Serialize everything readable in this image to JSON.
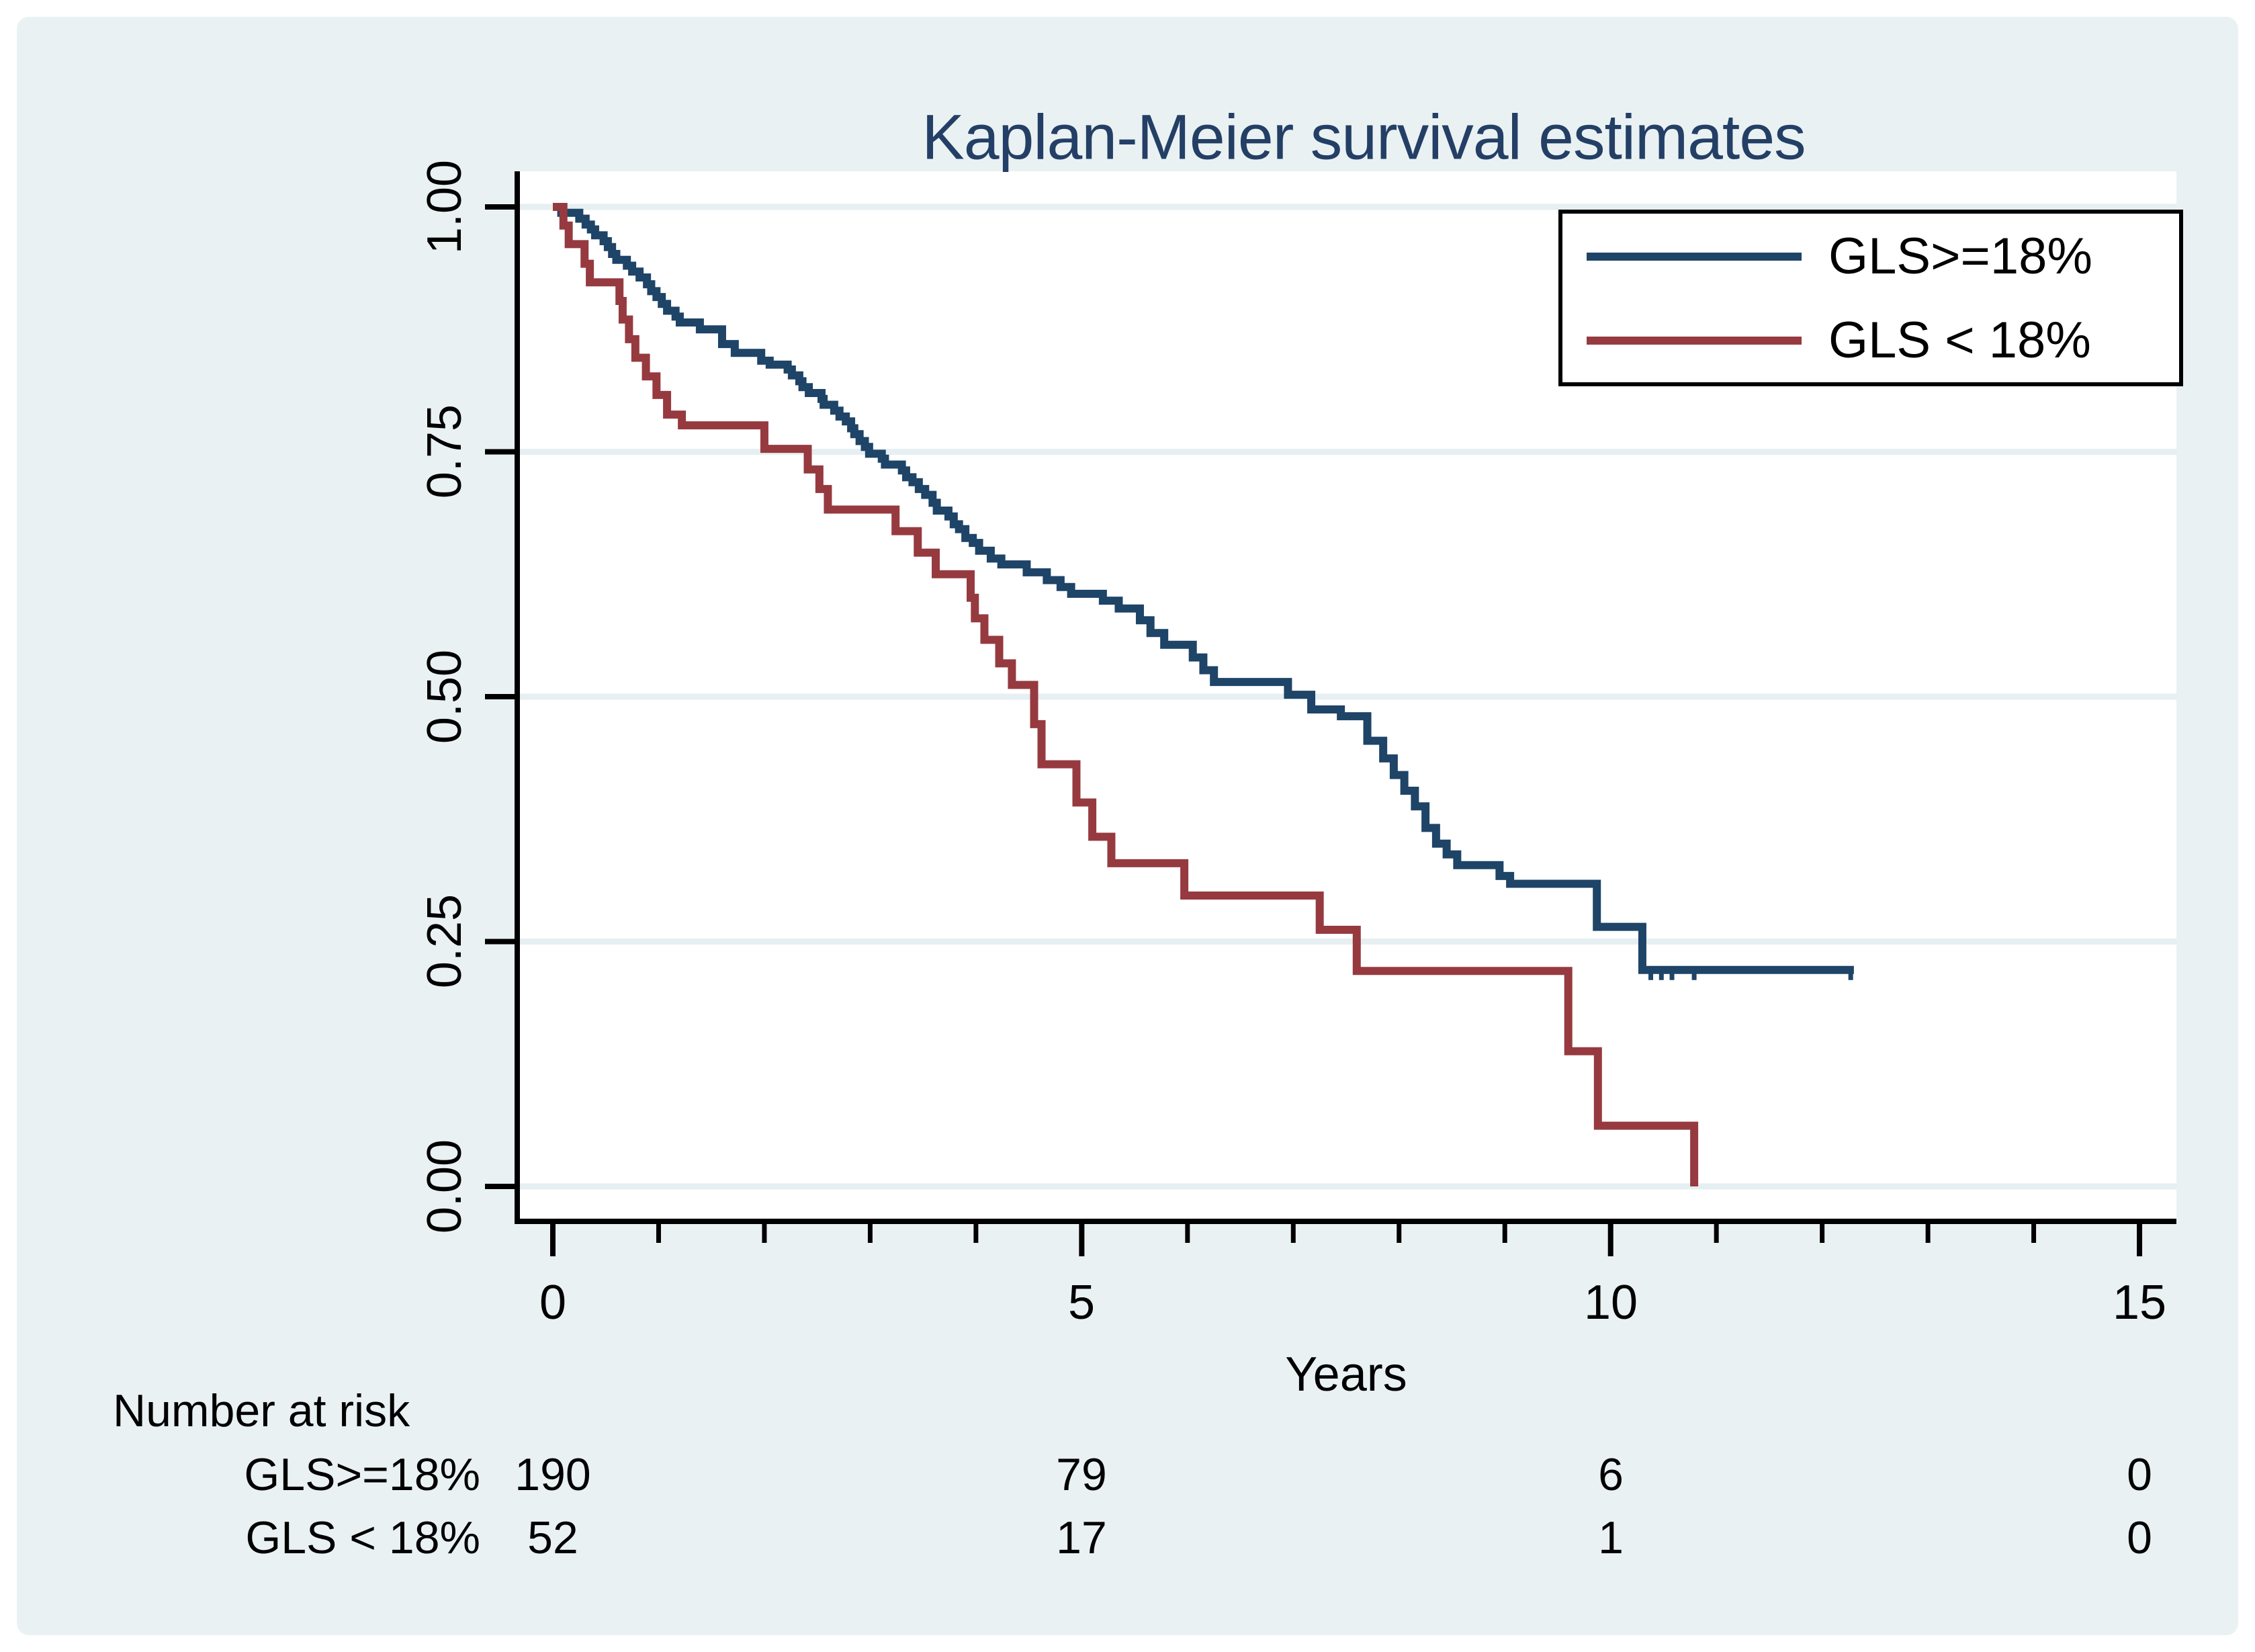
{
  "title": "Kaplan-Meier survival estimates",
  "colors": {
    "navy": "#1E4467",
    "maroon": "#963A40",
    "canvas_bg": "#EAF1F2",
    "plot_bg": "#FFFFFF",
    "gridline": "#E6EFF1",
    "axis": "#000000",
    "title_text": "#243F66"
  },
  "axes": {
    "y": {
      "ticks": [
        {
          "label": "1.00",
          "value": 1.0
        },
        {
          "label": "0.75",
          "value": 0.75
        },
        {
          "label": "0.50",
          "value": 0.5
        },
        {
          "label": "0.25",
          "value": 0.25
        },
        {
          "label": "0.00",
          "value": 0.0
        }
      ]
    },
    "x": {
      "label": "Years",
      "ticks": [
        {
          "label": "0",
          "value": 0
        },
        {
          "label": "5",
          "value": 5
        },
        {
          "label": "10",
          "value": 10
        },
        {
          "label": "15",
          "value": 15
        }
      ],
      "minor_tick_values": [
        1,
        2,
        3,
        4,
        6,
        7,
        8,
        9,
        11,
        12,
        13,
        14
      ]
    }
  },
  "legend": {
    "items": [
      {
        "label": "GLS>=18%",
        "color_key": "navy"
      },
      {
        "label": "GLS < 18%",
        "color_key": "maroon"
      }
    ]
  },
  "risk_table": {
    "heading": "Number at risk",
    "time_points": [
      0,
      5,
      10,
      15
    ],
    "rows": [
      {
        "label": "GLS>=18%",
        "counts": [
          "190",
          "79",
          "6",
          "0"
        ]
      },
      {
        "label": "GLS < 18%",
        "counts": [
          "52",
          "17",
          "1",
          "0"
        ]
      }
    ]
  },
  "chart_data": {
    "type": "line",
    "subtype": "kaplan-meier-step",
    "title": "Kaplan-Meier survival estimates",
    "xlabel": "Years",
    "ylabel": "",
    "xlim": [
      0,
      15.4
    ],
    "ylim": [
      0,
      1.0
    ],
    "x_ticks": [
      0,
      5,
      10,
      15
    ],
    "y_ticks": [
      0.0,
      0.25,
      0.5,
      0.75,
      1.0
    ],
    "grid": "horizontal",
    "legend_position": "top-right-inside",
    "series": [
      {
        "name": "GLS>=18%",
        "color_key": "navy",
        "n_at_risk": [
          190,
          79,
          6,
          0
        ],
        "end_t": 12.3,
        "censor_t": [
          10.38,
          10.48,
          10.58,
          10.79,
          12.27
        ],
        "points": [
          [
            0,
            1.0
          ],
          [
            0.08,
            0.994
          ],
          [
            0.25,
            0.988
          ],
          [
            0.31,
            0.982
          ],
          [
            0.36,
            0.977
          ],
          [
            0.4,
            0.971
          ],
          [
            0.48,
            0.965
          ],
          [
            0.52,
            0.959
          ],
          [
            0.56,
            0.952
          ],
          [
            0.6,
            0.946
          ],
          [
            0.7,
            0.94
          ],
          [
            0.75,
            0.934
          ],
          [
            0.82,
            0.928
          ],
          [
            0.89,
            0.921
          ],
          [
            0.93,
            0.914
          ],
          [
            0.98,
            0.908
          ],
          [
            1.03,
            0.901
          ],
          [
            1.08,
            0.894
          ],
          [
            1.16,
            0.888
          ],
          [
            1.2,
            0.882
          ],
          [
            1.39,
            0.875
          ],
          [
            1.6,
            0.86
          ],
          [
            1.72,
            0.851
          ],
          [
            1.97,
            0.843
          ],
          [
            2.05,
            0.839
          ],
          [
            2.22,
            0.834
          ],
          [
            2.26,
            0.828
          ],
          [
            2.33,
            0.822
          ],
          [
            2.36,
            0.816
          ],
          [
            2.42,
            0.81
          ],
          [
            2.54,
            0.804
          ],
          [
            2.56,
            0.798
          ],
          [
            2.66,
            0.792
          ],
          [
            2.71,
            0.786
          ],
          [
            2.77,
            0.781
          ],
          [
            2.82,
            0.774
          ],
          [
            2.85,
            0.768
          ],
          [
            2.9,
            0.761
          ],
          [
            2.95,
            0.755
          ],
          [
            2.99,
            0.748
          ],
          [
            3.11,
            0.743
          ],
          [
            3.14,
            0.737
          ],
          [
            3.3,
            0.731
          ],
          [
            3.34,
            0.724
          ],
          [
            3.4,
            0.719
          ],
          [
            3.46,
            0.712
          ],
          [
            3.52,
            0.706
          ],
          [
            3.59,
            0.698
          ],
          [
            3.63,
            0.69
          ],
          [
            3.74,
            0.684
          ],
          [
            3.79,
            0.676
          ],
          [
            3.84,
            0.671
          ],
          [
            3.9,
            0.662
          ],
          [
            3.97,
            0.657
          ],
          [
            4.03,
            0.649
          ],
          [
            4.14,
            0.641
          ],
          [
            4.24,
            0.635
          ],
          [
            4.48,
            0.627
          ],
          [
            4.67,
            0.619
          ],
          [
            4.8,
            0.612
          ],
          [
            4.9,
            0.605
          ],
          [
            5.2,
            0.598
          ],
          [
            5.35,
            0.59
          ],
          [
            5.55,
            0.578
          ],
          [
            5.65,
            0.565
          ],
          [
            5.78,
            0.553
          ],
          [
            6.05,
            0.54
          ],
          [
            6.15,
            0.527
          ],
          [
            6.25,
            0.515
          ],
          [
            6.95,
            0.502
          ],
          [
            7.17,
            0.487
          ],
          [
            7.45,
            0.48
          ],
          [
            7.7,
            0.455
          ],
          [
            7.85,
            0.437
          ],
          [
            7.95,
            0.42
          ],
          [
            8.05,
            0.404
          ],
          [
            8.15,
            0.388
          ],
          [
            8.25,
            0.366
          ],
          [
            8.35,
            0.35
          ],
          [
            8.45,
            0.339
          ],
          [
            8.55,
            0.328
          ],
          [
            8.95,
            0.317
          ],
          [
            9.05,
            0.309
          ],
          [
            9.87,
            0.265
          ],
          [
            10.3,
            0.221
          ]
        ]
      },
      {
        "name": "GLS < 18%",
        "color_key": "maroon",
        "n_at_risk": [
          52,
          17,
          1,
          0
        ],
        "end_t": 10.79,
        "censor_t": [],
        "points": [
          [
            0,
            1.0
          ],
          [
            0.1,
            0.981
          ],
          [
            0.15,
            0.962
          ],
          [
            0.3,
            0.942
          ],
          [
            0.35,
            0.923
          ],
          [
            0.63,
            0.904
          ],
          [
            0.66,
            0.885
          ],
          [
            0.72,
            0.865
          ],
          [
            0.78,
            0.846
          ],
          [
            0.88,
            0.827
          ],
          [
            0.98,
            0.808
          ],
          [
            1.08,
            0.788
          ],
          [
            1.22,
            0.777
          ],
          [
            2.0,
            0.753
          ],
          [
            2.41,
            0.732
          ],
          [
            2.52,
            0.712
          ],
          [
            2.6,
            0.691
          ],
          [
            3.24,
            0.669
          ],
          [
            3.45,
            0.647
          ],
          [
            3.62,
            0.625
          ],
          [
            3.95,
            0.601
          ],
          [
            3.99,
            0.58
          ],
          [
            4.08,
            0.558
          ],
          [
            4.22,
            0.534
          ],
          [
            4.34,
            0.512
          ],
          [
            4.55,
            0.472
          ],
          [
            4.62,
            0.431
          ],
          [
            4.95,
            0.392
          ],
          [
            5.1,
            0.357
          ],
          [
            5.28,
            0.33
          ],
          [
            5.97,
            0.297
          ],
          [
            7.25,
            0.262
          ],
          [
            7.6,
            0.22
          ],
          [
            9.6,
            0.138
          ],
          [
            9.88,
            0.062
          ],
          [
            10.79,
            0.0
          ]
        ]
      }
    ]
  }
}
